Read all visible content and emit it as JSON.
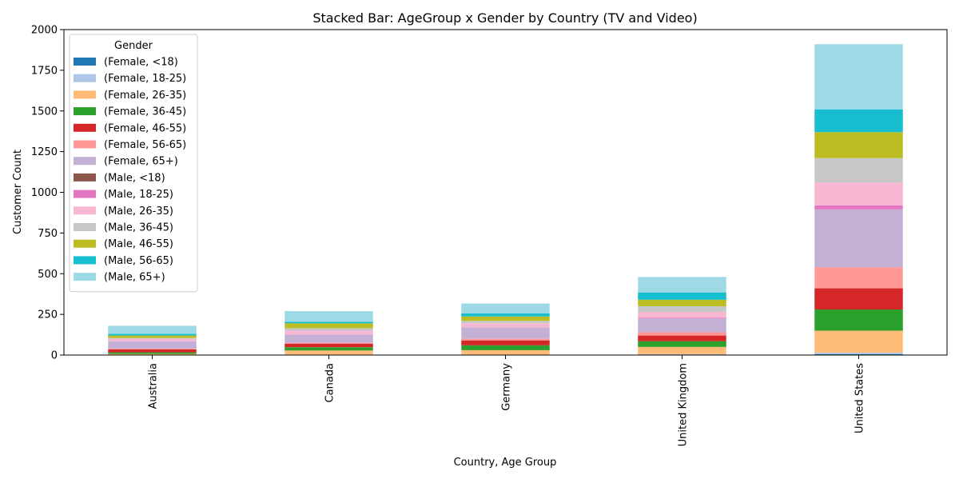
{
  "chart_data": {
    "type": "bar",
    "stacked": true,
    "title": "Stacked Bar: AgeGroup x Gender by Country (TV and Video)",
    "xlabel": "Country, Age Group",
    "ylabel": "Customer Count",
    "ylim": [
      0,
      2000
    ],
    "yticks": [
      0,
      250,
      500,
      750,
      1000,
      1250,
      1500,
      1750,
      2000
    ],
    "grid": false,
    "legend": {
      "title": "Gender",
      "placement": "top-left"
    },
    "categories": [
      "Australia",
      "Canada",
      "Germany",
      "United Kingdom",
      "United States"
    ],
    "series": [
      {
        "name": "(Female, <18)",
        "color": "#1f77b4",
        "values": [
          0,
          0,
          0,
          0,
          5
        ]
      },
      {
        "name": "(Female, 18-25)",
        "color": "#aec7e8",
        "values": [
          2,
          3,
          3,
          5,
          10
        ]
      },
      {
        "name": "(Female, 26-35)",
        "color": "#ffbb78",
        "values": [
          5,
          25,
          27,
          45,
          135
        ]
      },
      {
        "name": "(Female, 36-45)",
        "color": "#2ca02c",
        "values": [
          10,
          20,
          30,
          35,
          130
        ]
      },
      {
        "name": "(Female, 46-55)",
        "color": "#d62728",
        "values": [
          18,
          22,
          30,
          35,
          130
        ]
      },
      {
        "name": "(Female, 56-65)",
        "color": "#ff9896",
        "values": [
          5,
          5,
          10,
          20,
          130
        ]
      },
      {
        "name": "(Female, 65+)",
        "color": "#c5b0d5",
        "values": [
          45,
          50,
          70,
          85,
          355
        ]
      },
      {
        "name": "(Male, <18)",
        "color": "#8c564b",
        "values": [
          0,
          0,
          0,
          0,
          0
        ]
      },
      {
        "name": "(Male, 18-25)",
        "color": "#e377c2",
        "values": [
          0,
          0,
          0,
          5,
          25
        ]
      },
      {
        "name": "(Male, 26-35)",
        "color": "#f7b6d2",
        "values": [
          15,
          25,
          25,
          35,
          140
        ]
      },
      {
        "name": "(Male, 36-45)",
        "color": "#c7c7c7",
        "values": [
          5,
          15,
          15,
          35,
          150
        ]
      },
      {
        "name": "(Male, 46-55)",
        "color": "#bcbd22",
        "values": [
          15,
          30,
          27,
          40,
          160
        ]
      },
      {
        "name": "(Male, 56-65)",
        "color": "#17becf",
        "values": [
          10,
          10,
          20,
          45,
          140
        ]
      },
      {
        "name": "(Male, 65+)",
        "color": "#9edae5",
        "values": [
          50,
          65,
          60,
          95,
          400
        ]
      }
    ]
  }
}
